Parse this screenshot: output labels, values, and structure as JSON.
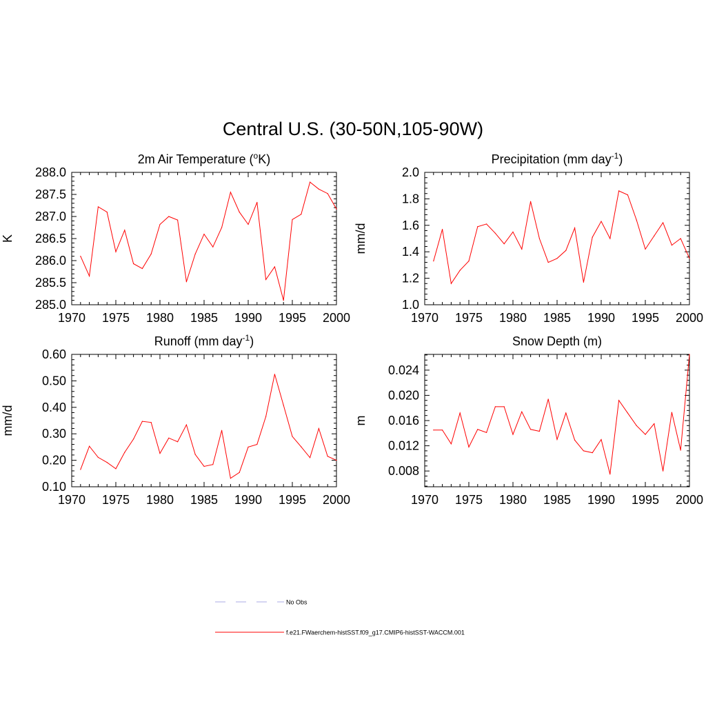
{
  "title": "Central U.S. (30-50N,105-90W)",
  "legend": {
    "entries": [
      {
        "label": "No Obs",
        "color": "#a9a9e6",
        "dash": true
      },
      {
        "label": "f.e21.FWaerchem-histSST.f09_g17.CMIP6-histSST-WACCM.001",
        "color": "#ff0000",
        "dash": false
      }
    ]
  },
  "chart_data": [
    {
      "type": "line",
      "title": "2m Air Temperature (oK)",
      "title_parts": {
        "pre": "2m Air Temperature (",
        "sup": "o",
        "post": "K)"
      },
      "xlabel": "",
      "ylabel": "K",
      "xlim": [
        1970,
        2000
      ],
      "ylim": [
        285.0,
        288.0
      ],
      "xticks": [
        "1970",
        "1975",
        "1980",
        "1985",
        "1990",
        "1995",
        "2000"
      ],
      "yticks": [
        "285.0",
        "285.5",
        "286.0",
        "286.5",
        "287.0",
        "287.5",
        "288.0"
      ],
      "x": [
        1971,
        1972,
        1973,
        1974,
        1975,
        1976,
        1977,
        1978,
        1979,
        1980,
        1981,
        1982,
        1983,
        1984,
        1985,
        1986,
        1987,
        1988,
        1989,
        1990,
        1991,
        1992,
        1993,
        1994,
        1995,
        1996,
        1997,
        1998,
        1999,
        2000
      ],
      "series": [
        {
          "color": "#ff0000",
          "values": [
            286.1,
            285.65,
            287.22,
            287.1,
            286.2,
            286.69,
            285.93,
            285.82,
            286.15,
            286.82,
            287.0,
            286.92,
            285.52,
            286.15,
            286.6,
            286.31,
            286.75,
            287.55,
            287.1,
            286.82,
            287.32,
            285.57,
            285.86,
            285.1,
            286.93,
            287.05,
            287.78,
            287.62,
            287.52,
            287.17
          ]
        }
      ]
    },
    {
      "type": "line",
      "title": "Precipitation (mm day-1)",
      "title_parts": {
        "pre": "Precipitation (mm day",
        "sup": "-1",
        "post": ")"
      },
      "xlabel": "",
      "ylabel": "mm/d",
      "xlim": [
        1970,
        2000
      ],
      "ylim": [
        1.0,
        2.0
      ],
      "xticks": [
        "1970",
        "1975",
        "1980",
        "1985",
        "1990",
        "1995",
        "2000"
      ],
      "yticks": [
        "1.0",
        "1.2",
        "1.4",
        "1.6",
        "1.8",
        "2.0"
      ],
      "x": [
        1971,
        1972,
        1973,
        1974,
        1975,
        1976,
        1977,
        1978,
        1979,
        1980,
        1981,
        1982,
        1983,
        1984,
        1985,
        1986,
        1987,
        1988,
        1989,
        1990,
        1991,
        1992,
        1993,
        1994,
        1995,
        1996,
        1997,
        1998,
        1999,
        2000
      ],
      "series": [
        {
          "color": "#ff0000",
          "values": [
            1.33,
            1.57,
            1.16,
            1.26,
            1.33,
            1.59,
            1.61,
            1.54,
            1.46,
            1.55,
            1.42,
            1.78,
            1.5,
            1.32,
            1.35,
            1.41,
            1.58,
            1.17,
            1.51,
            1.63,
            1.5,
            1.86,
            1.83,
            1.64,
            1.42,
            1.52,
            1.62,
            1.45,
            1.5,
            1.35
          ]
        }
      ]
    },
    {
      "type": "line",
      "title": "Runoff (mm day-1)",
      "title_parts": {
        "pre": "Runoff (mm day",
        "sup": "-1",
        "post": ")"
      },
      "xlabel": "",
      "ylabel": "mm/d",
      "xlim": [
        1970,
        2000
      ],
      "ylim": [
        0.1,
        0.6
      ],
      "xticks": [
        "1970",
        "1975",
        "1980",
        "1985",
        "1990",
        "1995",
        "2000"
      ],
      "yticks": [
        "0.10",
        "0.20",
        "0.30",
        "0.40",
        "0.50",
        "0.60"
      ],
      "x": [
        1971,
        1972,
        1973,
        1974,
        1975,
        1976,
        1977,
        1978,
        1979,
        1980,
        1981,
        1982,
        1983,
        1984,
        1985,
        1986,
        1987,
        1988,
        1989,
        1990,
        1991,
        1992,
        1993,
        1994,
        1995,
        1996,
        1997,
        1998,
        1999,
        2000
      ],
      "series": [
        {
          "color": "#ff0000",
          "values": [
            0.165,
            0.253,
            0.211,
            0.192,
            0.168,
            0.23,
            0.28,
            0.347,
            0.343,
            0.226,
            0.284,
            0.27,
            0.334,
            0.222,
            0.177,
            0.184,
            0.313,
            0.132,
            0.154,
            0.25,
            0.26,
            0.365,
            0.525,
            0.408,
            0.29,
            0.251,
            0.21,
            0.32,
            0.215,
            0.2
          ]
        }
      ]
    },
    {
      "type": "line",
      "title": "Snow Depth (m)",
      "title_parts": {
        "pre": "Snow Depth (m)",
        "sup": "",
        "post": ""
      },
      "xlabel": "",
      "ylabel": "m",
      "xlim": [
        1970,
        2000
      ],
      "ylim": [
        0.0055,
        0.0265
      ],
      "xticks": [
        "1970",
        "1975",
        "1980",
        "1985",
        "1990",
        "1995",
        "2000"
      ],
      "yticks": [
        "0.008",
        "0.012",
        "0.016",
        "0.020",
        "0.024"
      ],
      "x": [
        1971,
        1972,
        1973,
        1974,
        1975,
        1976,
        1977,
        1978,
        1979,
        1980,
        1981,
        1982,
        1983,
        1984,
        1985,
        1986,
        1987,
        1988,
        1989,
        1990,
        1991,
        1992,
        1993,
        1994,
        1995,
        1996,
        1997,
        1998,
        1999,
        2000
      ],
      "series": [
        {
          "color": "#ff0000",
          "values": [
            0.0145,
            0.0145,
            0.0123,
            0.0172,
            0.0118,
            0.0146,
            0.0141,
            0.0182,
            0.0182,
            0.0138,
            0.0174,
            0.0146,
            0.0143,
            0.0194,
            0.013,
            0.0172,
            0.0129,
            0.0112,
            0.0109,
            0.013,
            0.0075,
            0.0192,
            0.0172,
            0.0152,
            0.0138,
            0.0155,
            0.008,
            0.0173,
            0.0113,
            0.0265
          ]
        }
      ]
    }
  ]
}
